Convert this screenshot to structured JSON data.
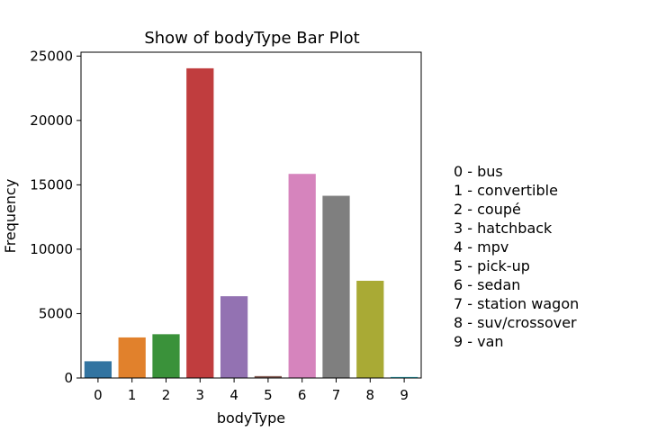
{
  "chart_data": {
    "type": "bar",
    "title": "Show of bodyType Bar Plot",
    "xlabel": "bodyType",
    "ylabel": "Frequency",
    "categories": [
      "0",
      "1",
      "2",
      "3",
      "4",
      "5",
      "6",
      "7",
      "8",
      "9"
    ],
    "values": [
      1300,
      3150,
      3400,
      24050,
      6350,
      150,
      15850,
      14150,
      7550,
      80
    ],
    "ylim": [
      0,
      25300
    ],
    "yticks": [
      0,
      5000,
      10000,
      15000,
      20000,
      25000
    ],
    "colors": [
      "#3274a1",
      "#e1812c",
      "#3a923a",
      "#c03d3e",
      "#9372b2",
      "#845b53",
      "#d684bd",
      "#7f7f7f",
      "#a9aa35",
      "#2ebece"
    ],
    "grid": false,
    "legend_position": "right"
  },
  "legend": {
    "items": [
      "0 - bus",
      "1 - convertible",
      "2 - coupé",
      "3 - hatchback",
      "4 - mpv",
      "5 - pick-up",
      "6 - sedan",
      "7 - station wagon",
      "8 - suv/crossover",
      "9 - van"
    ]
  }
}
